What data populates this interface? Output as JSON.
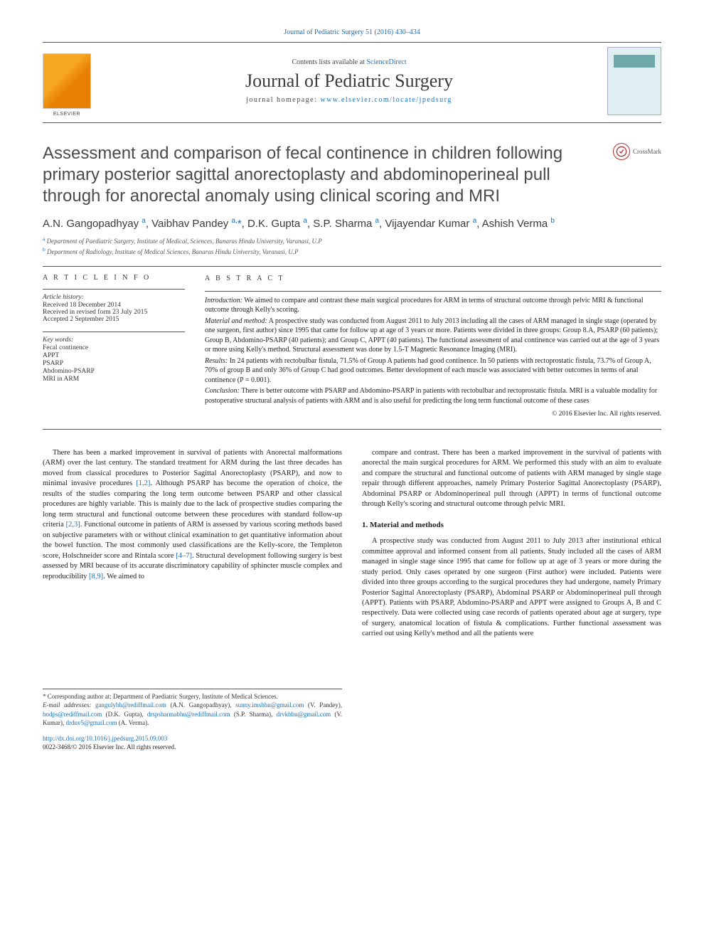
{
  "header": {
    "top_link": "Journal of Pediatric Surgery 51 (2016) 430–434",
    "contents_prefix": "Contents lists available at ",
    "contents_link": "ScienceDirect",
    "journal_title": "Journal of Pediatric Surgery",
    "homepage_prefix": "journal homepage: ",
    "homepage_url": "www.elsevier.com/locate/jpedsurg"
  },
  "crossmark_label": "CrossMark",
  "article": {
    "title": "Assessment and comparison of fecal continence in children following primary posterior sagittal anorectoplasty and abdominoperineal pull through for anorectal anomaly using clinical scoring and MRI",
    "authors_html": "A.N. Gangopadhyay <sup>a</sup>, Vaibhav Pandey <sup>a,</sup><span class='star'>*</span>, D.K. Gupta <sup>a</sup>, S.P. Sharma <sup>a</sup>, Vijayendar Kumar <sup>a</sup>, Ashish Verma <sup>b</sup>",
    "affiliations": [
      "Department of Paediatric Surgery, Institute of Medical, Sciences, Banaras Hindu University, Varanasi, U.P",
      "Department of Radiology, Institute of Medical Sciences, Banaras Hindu University, Varanasi, U.P"
    ]
  },
  "article_info": {
    "heading": "A R T I C L E   I N F O",
    "history_label": "Article history:",
    "received": "Received 18 December 2014",
    "revised": "Received in revised form 23 July 2015",
    "accepted": "Accepted 2 September 2015",
    "keywords_label": "Key words:",
    "keywords": [
      "Fecal continence",
      "APPT",
      "PSARP",
      "Abdomino-PSARP",
      "MRI in ARM"
    ]
  },
  "abstract": {
    "heading": "A B S T R A C T",
    "intro_label": "Introduction:",
    "intro": " We aimed to compare and contrast these main surgical procedures for ARM in terms of structural outcome through pelvic MRI & functional outcome through Kelly's scoring.",
    "method_label": "Material and method:",
    "method": " A prospective study was conducted from August 2011 to July 2013 including all the cases of ARM managed in single stage (operated by one surgeon, first author) since 1995 that came for follow up at age of 3 years or more. Patients were divided in three groups: Group 8.A, PSARP (60 patients); Group B, Abdomino-PSARP (40 patients); and Group C, APPT (40 patients). The functional assessment of anal continence was carried out at the age of 3 years or more using Kelly's method. Structural assessment was done by 1.5-T Magnetic Resonance Imaging (MRI).",
    "results_label": "Results:",
    "results": " In 24 patients with rectobulbar fistula, 71.5% of Group A patients had good continence. In 50 patients with rectoprostatic fistula, 73.7% of Group A, 70% of group B and only 36% of Group C had good outcomes. Better development of each muscle was associated with better outcomes in terms of anal continence (P = 0.001).",
    "conclusion_label": "Conclusion:",
    "conclusion": " There is better outcome with PSARP and Abdomino-PSARP in patients with rectobulbar and rectoprostatic fistula. MRI is a valuable modality for postoperative structural analysis of patients with ARM and is also useful for predicting the long term functional outcome of these cases",
    "copyright": "© 2016 Elsevier Inc. All rights reserved."
  },
  "body": {
    "col1_p1": "There has been a marked improvement in survival of patients with Anorectal malformations (ARM) over the last century. The standard treatment for ARM during the last three decades has moved from classical procedures to Posterior Sagittal Anorectoplasty (PSARP), and now to minimal invasive procedures [1,2]. Although PSARP has become the operation of choice, the results of the studies comparing the long term outcome between PSARP and other classical procedures are highly variable. This is mainly due to the lack of prospective studies comparing the long term structural and functional outcome between these procedures with standard follow-up criteria [2,3]. Functional outcome in patients of ARM is assessed by various scoring methods based on subjective parameters with or without clinical examination to get quantitative information about the bowel function. The most commonly used classifications are the Kelly-score, the Templeton score, Holschneider score and Rintala score [4–7]. Structural development following surgery is best assessed by MRI because of its accurate discriminatory capability of sphincter muscle complex and reproducibility [8,9]. We aimed to",
    "col2_p1": "compare and contrast. There has been a marked improvement in the survival of patients with anorectal the main surgical procedures for ARM. We performed this study with an aim to evaluate and compare the structural and functional outcome of patients with ARM managed by single stage repair through different approaches, namely Primary Posterior Sagittal Anorectoplasty (PSARP), Abdominal PSARP or Abdominoperineal pull through (APPT) in terms of functional outcome through Kelly's scoring and structural outcome through pelvic MRI.",
    "section_heading": "1. Material and methods",
    "col2_p2": "A prospective study was conducted from August 2011 to July 2013 after institutional ethical committee approval and informed consent from all patients. Study included all the cases of ARM managed in single stage since 1995 that came for follow up at age of 3 years or more during the study period. Only cases operated by one surgeon (First author) were included. Patients were divided into three groups according to the surgical procedures they had undergone, namely Primary Posterior Sagittal Anorectoplasty (PSARP), Abdominal PSARP or Abdominoperineal pull through (APPT). Patients with PSARP, Abdomino-PSARP and APPT were assigned to Groups A, B and C respectively. Data were collected using case records of patients operated about age at surgery, type of surgery, anatomical location of fistula & complications. Further functional assessment was carried out using Kelly's method and all the patients were"
  },
  "footnotes": {
    "corresponding": "* Corresponding author at: Department of Paediatric Surgery, Institute of Medical Sciences.",
    "emails_label": "E-mail addresses:",
    "emails": [
      {
        "addr": "gangulybh@rediffmail.com",
        "name": " (A.N. Gangopadhyay),"
      },
      {
        "addr": "sunny.imsbhu@gmail.com",
        "name": " (V. Pandey), "
      },
      {
        "addr": "hodps@rediffmail.com",
        "name": " (D.K. Gupta),"
      },
      {
        "addr": "drspsharmabhu@rediffmail.com",
        "name": " (S.P. Sharma), "
      },
      {
        "addr": "drvkbhu@gmail.com",
        "name": " (V. Kumar),"
      },
      {
        "addr": "drdnv5@gmail.com",
        "name": " (A. Verma)."
      }
    ],
    "doi": "http://dx.doi.org/10.1016/j.jpedsurg.2015.09.003",
    "issn_copyright": "0022-3468/© 2016 Elsevier Inc. All rights reserved."
  },
  "colors": {
    "link": "#1b6fb8",
    "rule": "#555555",
    "text": "#222222"
  }
}
